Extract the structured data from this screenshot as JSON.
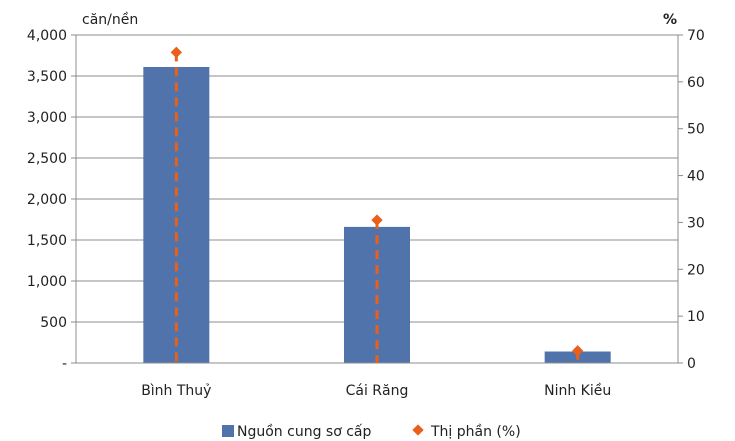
{
  "chart_data": {
    "type": "bar",
    "categories": [
      "Bình Thuỷ",
      "Cái Răng",
      "Ninh Kiều"
    ],
    "y_left_label": "căn/nền",
    "y_right_label": "%",
    "y_left_ticks": [
      "-",
      "500",
      "1,000",
      "1,500",
      "2,000",
      "2,500",
      "3,000",
      "3,500",
      "4,000"
    ],
    "y_right_ticks": [
      "0",
      "10",
      "20",
      "30",
      "40",
      "50",
      "60",
      "70"
    ],
    "ylim_left": [
      0,
      4000
    ],
    "ylim_right": [
      0,
      70
    ],
    "grid": true,
    "legend_position": "bottom",
    "series": [
      {
        "name": "Nguồn cung sơ cấp",
        "type": "bar",
        "axis": "left",
        "color": "#4f73aa",
        "values": [
          3610,
          1660,
          140
        ]
      },
      {
        "name": "Thị phần (%)",
        "type": "marker-dashed",
        "axis": "right",
        "color": "#e8601c",
        "values": [
          66.3,
          30.5,
          2.6
        ]
      }
    ]
  }
}
